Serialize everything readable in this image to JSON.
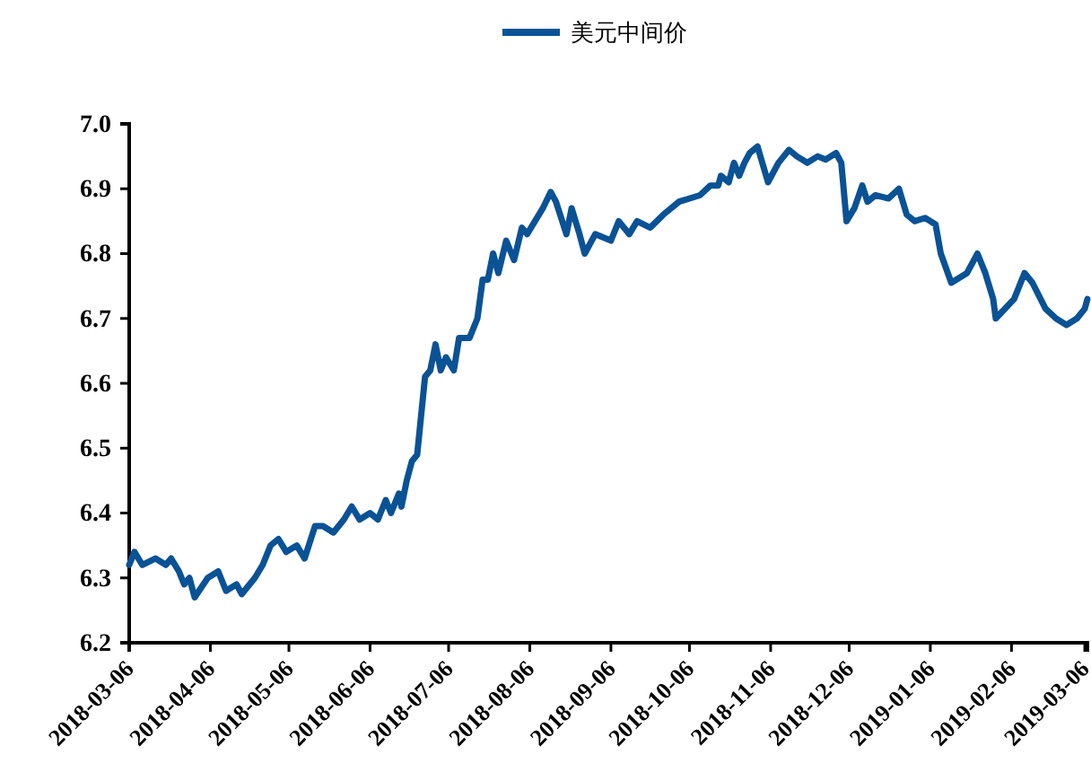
{
  "chart_data": {
    "type": "line",
    "x": [
      "2018-03-06",
      "2018-03-08",
      "2018-03-11",
      "2018-03-16",
      "2018-03-20",
      "2018-03-22",
      "2018-03-25",
      "2018-03-27",
      "2018-03-29",
      "2018-03-31",
      "2018-04-05",
      "2018-04-09",
      "2018-04-12",
      "2018-04-16",
      "2018-04-18",
      "2018-04-23",
      "2018-04-26",
      "2018-04-29",
      "2018-05-02",
      "2018-05-05",
      "2018-05-09",
      "2018-05-12",
      "2018-05-16",
      "2018-05-19",
      "2018-05-23",
      "2018-05-27",
      "2018-05-30",
      "2018-06-02",
      "2018-06-06",
      "2018-06-09",
      "2018-06-12",
      "2018-06-14",
      "2018-06-17",
      "2018-06-18",
      "2018-06-20",
      "2018-06-22",
      "2018-06-24",
      "2018-06-27",
      "2018-06-29",
      "2018-07-01",
      "2018-07-03",
      "2018-07-05",
      "2018-07-08",
      "2018-07-10",
      "2018-07-14",
      "2018-07-17",
      "2018-07-19",
      "2018-07-21",
      "2018-07-23",
      "2018-07-25",
      "2018-07-28",
      "2018-07-31",
      "2018-08-03",
      "2018-08-05",
      "2018-08-08",
      "2018-08-11",
      "2018-08-14",
      "2018-08-16",
      "2018-08-20",
      "2018-08-22",
      "2018-08-25",
      "2018-08-27",
      "2018-08-31",
      "2018-09-06",
      "2018-09-09",
      "2018-09-13",
      "2018-09-16",
      "2018-09-21",
      "2018-09-26",
      "2018-10-02",
      "2018-10-10",
      "2018-10-14",
      "2018-10-17",
      "2018-10-18",
      "2018-10-21",
      "2018-10-23",
      "2018-10-25",
      "2018-10-27",
      "2018-10-29",
      "2018-11-01",
      "2018-11-05",
      "2018-11-09",
      "2018-11-13",
      "2018-11-16",
      "2018-11-20",
      "2018-11-24",
      "2018-11-27",
      "2018-12-01",
      "2018-12-03",
      "2018-12-05",
      "2018-12-08",
      "2018-12-11",
      "2018-12-13",
      "2018-12-16",
      "2018-12-21",
      "2018-12-25",
      "2018-12-28",
      "2018-12-31",
      "2019-01-04",
      "2019-01-08",
      "2019-01-10",
      "2019-01-14",
      "2019-01-20",
      "2019-01-24",
      "2019-01-27",
      "2019-01-30",
      "2019-01-31",
      "2019-02-07",
      "2019-02-11",
      "2019-02-14",
      "2019-02-19",
      "2019-02-23",
      "2019-02-27",
      "2019-03-03",
      "2019-03-06",
      "2019-03-07"
    ],
    "series": [
      {
        "name": "美元中间价",
        "color": "#0a5296",
        "values": [
          6.32,
          6.34,
          6.32,
          6.33,
          6.32,
          6.33,
          6.31,
          6.29,
          6.3,
          6.27,
          6.3,
          6.31,
          6.28,
          6.29,
          6.275,
          6.3,
          6.32,
          6.35,
          6.36,
          6.34,
          6.35,
          6.33,
          6.38,
          6.38,
          6.37,
          6.39,
          6.41,
          6.39,
          6.4,
          6.39,
          6.42,
          6.4,
          6.43,
          6.41,
          6.45,
          6.48,
          6.49,
          6.61,
          6.62,
          6.66,
          6.62,
          6.64,
          6.62,
          6.67,
          6.67,
          6.7,
          6.76,
          6.76,
          6.8,
          6.77,
          6.82,
          6.79,
          6.84,
          6.83,
          6.85,
          6.87,
          6.895,
          6.88,
          6.83,
          6.87,
          6.83,
          6.8,
          6.83,
          6.82,
          6.85,
          6.83,
          6.85,
          6.84,
          6.86,
          6.88,
          6.89,
          6.905,
          6.905,
          6.92,
          6.91,
          6.94,
          6.92,
          6.94,
          6.955,
          6.965,
          6.91,
          6.94,
          6.96,
          6.95,
          6.94,
          6.95,
          6.945,
          6.955,
          6.94,
          6.85,
          6.87,
          6.905,
          6.88,
          6.89,
          6.885,
          6.9,
          6.86,
          6.85,
          6.855,
          6.845,
          6.8,
          6.755,
          6.77,
          6.8,
          6.77,
          6.73,
          6.7,
          6.73,
          6.77,
          6.755,
          6.715,
          6.7,
          6.69,
          6.7,
          6.715,
          6.73
        ]
      }
    ],
    "xlim": [
      "2018-03-06",
      "2019-03-07"
    ],
    "xticks": [
      "2018-03-06",
      "2018-04-06",
      "2018-05-06",
      "2018-06-06",
      "2018-07-06",
      "2018-08-06",
      "2018-09-06",
      "2018-10-06",
      "2018-11-06",
      "2018-12-06",
      "2019-01-06",
      "2019-02-06",
      "2019-03-06"
    ],
    "ylim": [
      6.2,
      7.0
    ],
    "yticks": [
      {
        "value": 6.2,
        "label": "6.2"
      },
      {
        "value": 6.3,
        "label": "6.3"
      },
      {
        "value": 6.4,
        "label": "6.4"
      },
      {
        "value": 6.5,
        "label": "6.5"
      },
      {
        "value": 6.6,
        "label": "6.6"
      },
      {
        "value": 6.7,
        "label": "6.7"
      },
      {
        "value": 6.8,
        "label": "6.8"
      },
      {
        "value": 6.9,
        "label": "6.9"
      },
      {
        "value": 7.0,
        "label": "7.0"
      }
    ],
    "grid": false,
    "legend": "top",
    "marker": "none",
    "line_style": "solid"
  }
}
